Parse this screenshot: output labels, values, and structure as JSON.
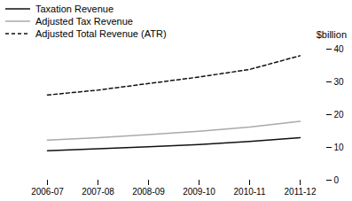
{
  "chart_data": {
    "type": "line",
    "categories": [
      "2006-07",
      "2007-08",
      "2008-09",
      "2009-10",
      "2010-11",
      "2011-12"
    ],
    "series": [
      {
        "name": "Taxation Revenue",
        "color": "#111111",
        "line_style": "solid",
        "values": [
          9.0,
          9.6,
          10.2,
          10.9,
          11.8,
          13.0
        ]
      },
      {
        "name": "Adjusted Tax Revenue",
        "color": "#aaaaaa",
        "line_style": "solid",
        "values": [
          12.2,
          13.0,
          13.9,
          14.9,
          16.2,
          18.0
        ]
      },
      {
        "name": "Adjusted Total Revenue (ATR)",
        "color": "#111111",
        "line_style": "dashed",
        "values": [
          26.0,
          27.5,
          29.5,
          31.5,
          33.8,
          38.0
        ]
      }
    ],
    "y_label": "$billion",
    "ylim": [
      0,
      40
    ],
    "yticks": [
      0,
      10,
      20,
      30,
      40
    ],
    "grid": false,
    "legend": "upper left"
  }
}
